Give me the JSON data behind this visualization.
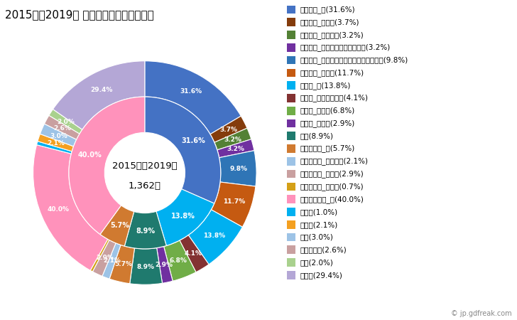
{
  "title": "2015年〜2019年 備前市の男性の死因構成",
  "center_text_line1": "2015年〜2019年",
  "center_text_line2": "1,362人",
  "outer_segments": [
    {
      "label": "悪性腫瘍_計(31.6%)",
      "value": 31.6,
      "color": "#4472C4",
      "show_label": true
    },
    {
      "label": "悪性腫瘍_胃がん(3.7%)",
      "value": 3.7,
      "color": "#843C0C",
      "show_label": true
    },
    {
      "label": "悪性腫瘍_大腸がん(3.2%)",
      "value": 3.2,
      "color": "#538135",
      "show_label": true
    },
    {
      "label": "悪性腫瘍_肝がん・肝内胆管がん(3.2%)",
      "value": 3.2,
      "color": "#7030A0",
      "show_label": true
    },
    {
      "label": "悪性腫瘍_気管がん・気管支がん・肺がん(9.8%)",
      "value": 9.8,
      "color": "#2F75B6",
      "show_label": true
    },
    {
      "label": "悪性腫瘍_その他(11.7%)",
      "value": 11.7,
      "color": "#C55A11",
      "show_label": true
    },
    {
      "label": "心疾患_計(13.8%)",
      "value": 13.8,
      "color": "#00B0F0",
      "show_label": true
    },
    {
      "label": "心疾患_急性心筋梗塞(4.1%)",
      "value": 4.1,
      "color": "#833232",
      "show_label": true
    },
    {
      "label": "心疾患_心不全(6.8%)",
      "value": 6.8,
      "color": "#70AD47",
      "show_label": true
    },
    {
      "label": "心疾患_その他(2.9%)",
      "value": 2.9,
      "color": "#7030A0",
      "show_label": true
    },
    {
      "label": "肺炎(8.9%)",
      "value": 8.9,
      "color": "#1F7A6E",
      "show_label": true
    },
    {
      "label": "脳血管疾患_計(5.7%)",
      "value": 5.7,
      "color": "#D07A30",
      "show_label": true
    },
    {
      "label": "脳血管疾患_脳内出血(2.1%)",
      "value": 2.1,
      "color": "#9DC3E6",
      "show_label": true
    },
    {
      "label": "脳血管疾患_脳梗塞(2.9%)",
      "value": 2.9,
      "color": "#C9A0A0",
      "show_label": true
    },
    {
      "label": "脳血管疾患_その他(0.7%)",
      "value": 0.7,
      "color": "#D4A017",
      "show_label": false
    },
    {
      "label": "その他の死因_計(40.0%)",
      "value": 40.0,
      "color": "#FF92BB",
      "show_label": true
    },
    {
      "label": "肝疾患(1.0%)",
      "value": 1.0,
      "color": "#00B0F0",
      "show_label": false
    },
    {
      "label": "腎不全(2.1%)",
      "value": 2.1,
      "color": "#F4A020",
      "show_label": true
    },
    {
      "label": "老衰(3.0%)",
      "value": 3.0,
      "color": "#9DC3E6",
      "show_label": true
    },
    {
      "label": "不慮の事故(2.6%)",
      "value": 2.6,
      "color": "#C9A0A0",
      "show_label": true
    },
    {
      "label": "自殺(2.0%)",
      "value": 2.0,
      "color": "#A9D18E",
      "show_label": true
    },
    {
      "label": "その他(29.4%)",
      "value": 29.4,
      "color": "#B4A7D6",
      "show_label": true
    }
  ],
  "inner_segments": [
    {
      "label": "悪性腫瘍_計",
      "value": 31.6,
      "color": "#4472C4"
    },
    {
      "label": "心疾患_計",
      "value": 13.8,
      "color": "#00B0F0"
    },
    {
      "label": "肺炎",
      "value": 8.9,
      "color": "#1F7A6E"
    },
    {
      "label": "脳血管疾患_計",
      "value": 5.7,
      "color": "#D07A30"
    },
    {
      "label": "その他の死因_計",
      "value": 40.0,
      "color": "#FF92BB"
    }
  ],
  "legend_items": [
    {
      "label": "悪性腫瘍_計(31.6%)",
      "color": "#4472C4"
    },
    {
      "label": "悪性腫瘍_胃がん(3.7%)",
      "color": "#843C0C"
    },
    {
      "label": "悪性腫瘍_大腸がん(3.2%)",
      "color": "#538135"
    },
    {
      "label": "悪性腫瘍_肝がん・肝内胆管がん(3.2%)",
      "color": "#7030A0"
    },
    {
      "label": "悪性腫瘍_気管がん・気管支がん・肺がん(9.8%)",
      "color": "#2F75B6"
    },
    {
      "label": "悪性腫瘍_その他(11.7%)",
      "color": "#C55A11"
    },
    {
      "label": "心疾患_計(13.8%)",
      "color": "#00B0F0"
    },
    {
      "label": "心疾患_急性心筋梗塞(4.1%)",
      "color": "#833232"
    },
    {
      "label": "心疾患_心不全(6.8%)",
      "color": "#70AD47"
    },
    {
      "label": "心疾患_その他(2.9%)",
      "color": "#7030A0"
    },
    {
      "label": "肺炎(8.9%)",
      "color": "#1F7A6E"
    },
    {
      "label": "脳血管疾患_計(5.7%)",
      "color": "#D07A30"
    },
    {
      "label": "脳血管疾患_脳内出血(2.1%)",
      "color": "#9DC3E6"
    },
    {
      "label": "脳血管疾患_脳梗塞(2.9%)",
      "color": "#C9A0A0"
    },
    {
      "label": "脳血管疾患_その他(0.7%)",
      "color": "#D4A017"
    },
    {
      "label": "その他の死因_計(40.0%)",
      "color": "#FF92BB"
    },
    {
      "label": "肝疾患(1.0%)",
      "color": "#00B0F0"
    },
    {
      "label": "腎不全(2.1%)",
      "color": "#F4A020"
    },
    {
      "label": "老衰(3.0%)",
      "color": "#9DC3E6"
    },
    {
      "label": "不慮の事故(2.6%)",
      "color": "#C9A0A0"
    },
    {
      "label": "自殺(2.0%)",
      "color": "#A9D18E"
    },
    {
      "label": "その他(29.4%)",
      "color": "#B4A7D6"
    }
  ],
  "background_color": "#FFFFFF",
  "title_fontsize": 11,
  "legend_fontsize": 7.5
}
